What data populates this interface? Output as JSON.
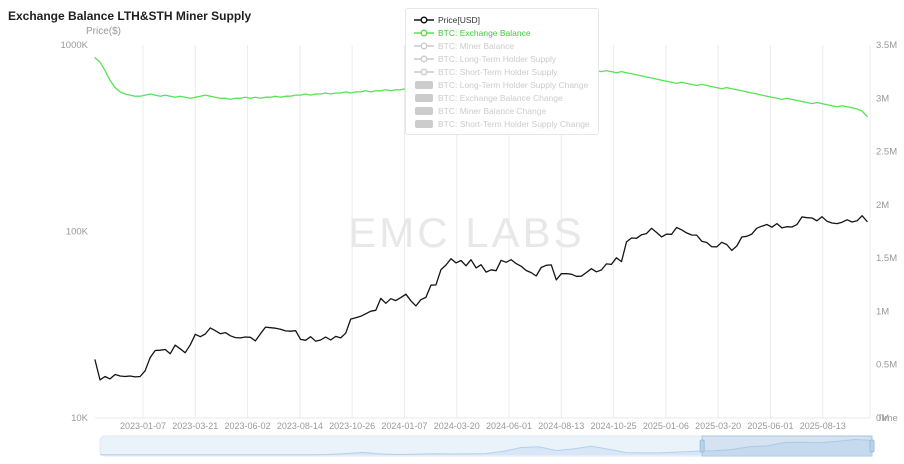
{
  "title": "Exchange Balance LTH&STH Miner Supply",
  "watermark": "EMC LABS",
  "legend": {
    "items": [
      {
        "label": "Price[USD]",
        "icon": "line",
        "color": "#141414",
        "label_color": "#333333",
        "active": true
      },
      {
        "label": "BTC: Exchange Balance",
        "icon": "line",
        "color": "#57e257",
        "label_color": "#43c943",
        "active": true
      },
      {
        "label": "BTC: Miner Balance",
        "icon": "line",
        "color": "#cccccc",
        "label_color": "#cccccc",
        "active": false
      },
      {
        "label": "BTC: Long-Term Holder Supply",
        "icon": "line",
        "color": "#cccccc",
        "label_color": "#cccccc",
        "active": false
      },
      {
        "label": "BTC: Short-Term Holder Supply",
        "icon": "line",
        "color": "#cccccc",
        "label_color": "#cccccc",
        "active": false
      },
      {
        "label": "BTC: Long-Term Holder Supply Change",
        "icon": "bar",
        "color": "#cccccc",
        "label_color": "#cccccc",
        "active": false
      },
      {
        "label": "BTC: Exchange Balance Change",
        "icon": "bar",
        "color": "#cccccc",
        "label_color": "#cccccc",
        "active": false
      },
      {
        "label": "BTC: Miner Balance Change",
        "icon": "bar",
        "color": "#cccccc",
        "label_color": "#cccccc",
        "active": false
      },
      {
        "label": "BTC: Short-Term Holder Supply Change",
        "icon": "bar",
        "color": "#cccccc",
        "label_color": "#cccccc",
        "active": false
      }
    ]
  },
  "chart_data": {
    "type": "line",
    "title": "Exchange Balance LTH&STH Miner Supply",
    "watermark": "EMC LABS",
    "x_axis": {
      "name": "Time",
      "start": "2022-11-01",
      "end": "2025-10-18",
      "step_days": 7,
      "tick_labels": [
        "2023-01-07",
        "2023-03-21",
        "2023-06-02",
        "2023-08-14",
        "2023-10-26",
        "2024-01-07",
        "2024-03-20",
        "2024-06-01",
        "2024-08-13",
        "2024-10-25",
        "2025-01-06",
        "2025-03-20",
        "2025-06-01",
        "2025-08-13"
      ]
    },
    "y_left": {
      "name": "Price($)",
      "scale": "log",
      "range": [
        10000,
        1000000
      ],
      "ticks": [
        {
          "label": "1000K",
          "value": 1000000
        },
        {
          "label": "100K",
          "value": 100000
        },
        {
          "label": "10K",
          "value": 10000
        }
      ]
    },
    "y_right": {
      "scale": "linear",
      "unit": "M BTC",
      "range": [
        0,
        3.5
      ],
      "ticks": [
        {
          "label": "3.5M",
          "value": 3.5
        },
        {
          "label": "3M",
          "value": 3.0
        },
        {
          "label": "2.5M",
          "value": 2.5
        },
        {
          "label": "2M",
          "value": 2.0
        },
        {
          "label": "1.5M",
          "value": 1.5
        },
        {
          "label": "1M",
          "value": 1.0
        },
        {
          "label": "0.5M",
          "value": 0.5
        },
        {
          "label": "0M",
          "value": 0
        }
      ]
    },
    "series": [
      {
        "name": "Price[USD]",
        "axis": "left",
        "color": "#141414",
        "values": [
          20500,
          16000,
          16700,
          16200,
          17100,
          16800,
          16700,
          16800,
          16600,
          16700,
          17900,
          21100,
          23000,
          23100,
          23300,
          22100,
          24600,
          23500,
          22400,
          24700,
          28100,
          27300,
          28200,
          30400,
          29400,
          28300,
          28700,
          27600,
          27000,
          26900,
          27200,
          27100,
          25900,
          28300,
          30700,
          30500,
          30300,
          29900,
          29300,
          29200,
          29400,
          26400,
          26100,
          27300,
          25800,
          26200,
          27200,
          26200,
          27400,
          26900,
          28500,
          33900,
          34500,
          35100,
          36200,
          37400,
          37800,
          43800,
          41200,
          43600,
          42600,
          44200,
          46100,
          42500,
          39900,
          43100,
          44300,
          51500,
          51700,
          62500,
          66100,
          71500,
          67900,
          69900,
          65500,
          70600,
          63800,
          66400,
          60600,
          62300,
          61600,
          70100,
          68400,
          70600,
          67300,
          65100,
          61800,
          60200,
          57700,
          64100,
          65900,
          66200,
          55000,
          59400,
          59500,
          59000,
          57500,
          57600,
          60300,
          63200,
          60800,
          62200,
          67000,
          66600,
          72300,
          69000,
          88000,
          92300,
          92000,
          96000,
          97400,
          104000,
          98800,
          93500,
          96900,
          96600,
          105000,
          102100,
          98300,
          95800,
          95700,
          88700,
          87300,
          82900,
          82700,
          87500,
          85200,
          79200,
          83600,
          93400,
          94300,
          96800,
          104100,
          106800,
          109000,
          105400,
          110200,
          104600,
          106100,
          105700,
          108900,
          119800,
          118600,
          118200,
          114100,
          120000,
          113400,
          111000,
          110300,
          112100,
          115600,
          112500,
          114100,
          121500,
          113200
        ]
      },
      {
        "name": "BTC: Exchange Balance",
        "axis": "right",
        "color": "#57e257",
        "values": [
          3.38,
          3.34,
          3.26,
          3.17,
          3.1,
          3.06,
          3.04,
          3.03,
          3.02,
          3.02,
          3.03,
          3.04,
          3.03,
          3.02,
          3.03,
          3.02,
          3.01,
          3.02,
          3.01,
          3.0,
          3.01,
          3.02,
          3.03,
          3.02,
          3.01,
          3.0,
          3.0,
          2.99,
          3.0,
          3.0,
          3.01,
          3.0,
          3.01,
          3.0,
          3.01,
          3.01,
          3.02,
          3.01,
          3.02,
          3.02,
          3.03,
          3.03,
          3.04,
          3.03,
          3.04,
          3.04,
          3.05,
          3.04,
          3.05,
          3.05,
          3.06,
          3.05,
          3.06,
          3.06,
          3.07,
          3.06,
          3.07,
          3.07,
          3.08,
          3.07,
          3.08,
          3.08,
          3.09,
          3.09,
          3.1,
          3.09,
          3.1,
          3.1,
          3.11,
          3.12,
          3.11,
          3.1,
          3.11,
          3.12,
          3.13,
          3.12,
          3.13,
          3.14,
          3.15,
          3.16,
          3.17,
          3.18,
          3.19,
          3.2,
          3.21,
          3.22,
          3.23,
          3.24,
          3.25,
          3.26,
          3.26,
          3.27,
          3.28,
          3.27,
          3.28,
          3.27,
          3.26,
          3.27,
          3.26,
          3.25,
          3.26,
          3.25,
          3.26,
          3.25,
          3.24,
          3.25,
          3.24,
          3.23,
          3.22,
          3.21,
          3.2,
          3.19,
          3.18,
          3.17,
          3.16,
          3.15,
          3.14,
          3.15,
          3.14,
          3.13,
          3.12,
          3.13,
          3.12,
          3.11,
          3.1,
          3.09,
          3.1,
          3.09,
          3.08,
          3.07,
          3.06,
          3.05,
          3.04,
          3.03,
          3.02,
          3.01,
          3.0,
          2.99,
          3.0,
          2.99,
          2.98,
          2.97,
          2.96,
          2.95,
          2.96,
          2.95,
          2.94,
          2.93,
          2.92,
          2.93,
          2.92,
          2.91,
          2.9,
          2.88,
          2.83
        ]
      }
    ],
    "navigator": {
      "selection": [
        0.78,
        1.0
      ],
      "spark": [
        0.01,
        0.01,
        0.01,
        0.01,
        0.01,
        0.01,
        0.01,
        0.01,
        0.01,
        0.02,
        0.01,
        0.01,
        0.02,
        0.03,
        0.09,
        0.16,
        0.06,
        0.03,
        0.05,
        0.08,
        0.06,
        0.07,
        0.09,
        0.23,
        0.47,
        0.52,
        0.28,
        0.38,
        0.55,
        0.36,
        0.15,
        0.13,
        0.14,
        0.19,
        0.24,
        0.26,
        0.34,
        0.52,
        0.56,
        0.78,
        0.8,
        0.76,
        0.85,
        0.97,
        0.91
      ]
    }
  }
}
